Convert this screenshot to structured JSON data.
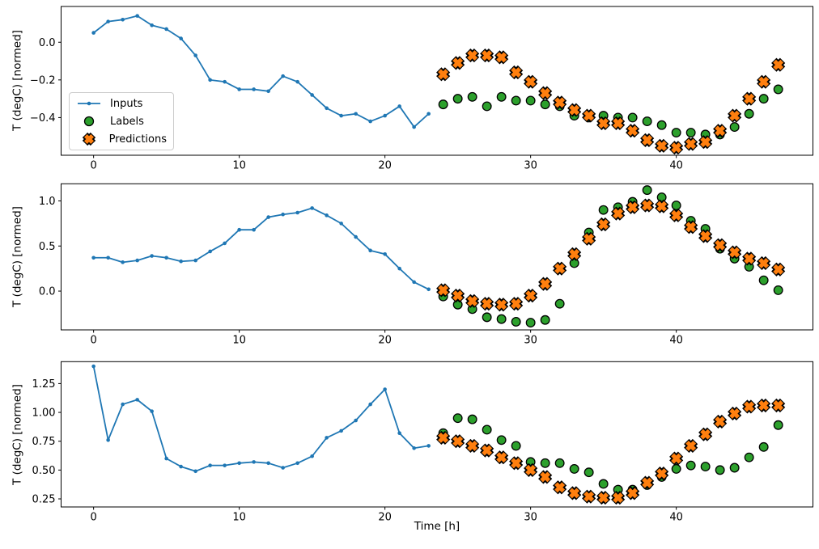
{
  "figure": {
    "xlabel": "Time [h]",
    "ylabel": "T (degC) [normed]",
    "background": "#ffffff",
    "colors": {
      "inputs": "#1f77b4",
      "labels": "#2ca02c",
      "predictions": "#ff7f0e",
      "marker_edge": "#000000",
      "axis": "#000000",
      "legend_border": "#cccccc"
    },
    "legend": {
      "position": "upper-left-of-first-subplot",
      "items": [
        {
          "label": "Inputs",
          "type": "line",
          "color": "#1f77b4"
        },
        {
          "label": "Labels",
          "type": "circle",
          "color": "#2ca02c"
        },
        {
          "label": "Predictions",
          "type": "x",
          "color": "#ff7f0e"
        }
      ]
    }
  },
  "chart_data": [
    {
      "type": "line",
      "subplot": 1,
      "ylabel": "T (degC) [normed]",
      "xlim": [
        -2.23,
        49.38
      ],
      "ylim": [
        -0.6,
        0.19
      ],
      "grid": false,
      "xticks": [
        0,
        10,
        20,
        30,
        40
      ],
      "yticks": [
        {
          "v": 0.0,
          "label": "0.0"
        },
        {
          "v": -0.2,
          "label": "−0.2"
        },
        {
          "v": -0.4,
          "label": "−0.4"
        }
      ],
      "series": [
        {
          "name": "Inputs",
          "type": "line",
          "color": "#1f77b4",
          "x_start": 0,
          "values": [
            0.05,
            0.11,
            0.12,
            0.14,
            0.09,
            0.07,
            0.02,
            -0.07,
            -0.2,
            -0.21,
            -0.25,
            -0.25,
            -0.26,
            -0.18,
            -0.21,
            -0.28,
            -0.35,
            -0.39,
            -0.38,
            -0.42,
            -0.39,
            -0.34,
            -0.45,
            -0.38
          ]
        },
        {
          "name": "Labels",
          "type": "scatter-circle",
          "color": "#2ca02c",
          "x_start": 24,
          "values": [
            -0.33,
            -0.3,
            -0.29,
            -0.34,
            -0.29,
            -0.31,
            -0.31,
            -0.33,
            -0.34,
            -0.39,
            -0.4,
            -0.39,
            -0.4,
            -0.4,
            -0.42,
            -0.44,
            -0.48,
            -0.48,
            -0.49,
            -0.49,
            -0.45,
            -0.38,
            -0.3,
            -0.25
          ]
        },
        {
          "name": "Predictions",
          "type": "scatter-x",
          "color": "#ff7f0e",
          "x_start": 24,
          "values": [
            -0.17,
            -0.11,
            -0.07,
            -0.07,
            -0.08,
            -0.16,
            -0.21,
            -0.27,
            -0.32,
            -0.36,
            -0.39,
            -0.43,
            -0.43,
            -0.47,
            -0.52,
            -0.55,
            -0.56,
            -0.54,
            -0.53,
            -0.47,
            -0.39,
            -0.3,
            -0.21,
            -0.12
          ]
        }
      ]
    },
    {
      "type": "line",
      "subplot": 2,
      "ylabel": "T (degC) [normed]",
      "xlim": [
        -2.23,
        49.38
      ],
      "ylim": [
        -0.43,
        1.19
      ],
      "grid": false,
      "xticks": [
        0,
        10,
        20,
        30,
        40
      ],
      "yticks": [
        {
          "v": 1.0,
          "label": "1.0"
        },
        {
          "v": 0.5,
          "label": "0.5"
        },
        {
          "v": 0.0,
          "label": "0.0"
        }
      ],
      "series": [
        {
          "name": "Inputs",
          "type": "line",
          "color": "#1f77b4",
          "x_start": 0,
          "values": [
            0.37,
            0.37,
            0.32,
            0.34,
            0.39,
            0.37,
            0.33,
            0.34,
            0.44,
            0.53,
            0.68,
            0.68,
            0.82,
            0.85,
            0.87,
            0.92,
            0.84,
            0.75,
            0.6,
            0.45,
            0.41,
            0.25,
            0.1,
            0.02
          ]
        },
        {
          "name": "Labels",
          "type": "scatter-circle",
          "color": "#2ca02c",
          "x_start": 24,
          "values": [
            -0.06,
            -0.15,
            -0.2,
            -0.29,
            -0.31,
            -0.34,
            -0.35,
            -0.32,
            -0.14,
            0.31,
            0.65,
            0.9,
            0.93,
            0.99,
            1.12,
            1.04,
            0.95,
            0.78,
            0.69,
            0.47,
            0.36,
            0.27,
            0.12,
            0.01
          ]
        },
        {
          "name": "Predictions",
          "type": "scatter-x",
          "color": "#ff7f0e",
          "x_start": 24,
          "values": [
            0.01,
            -0.05,
            -0.11,
            -0.14,
            -0.15,
            -0.14,
            -0.05,
            0.08,
            0.25,
            0.41,
            0.58,
            0.74,
            0.86,
            0.93,
            0.95,
            0.94,
            0.84,
            0.71,
            0.61,
            0.51,
            0.43,
            0.36,
            0.31,
            0.24
          ]
        }
      ]
    },
    {
      "type": "line",
      "subplot": 3,
      "ylabel": "T (degC) [normed]",
      "xlabel": "Time [h]",
      "xlim": [
        -2.23,
        49.38
      ],
      "ylim": [
        0.18,
        1.44
      ],
      "grid": false,
      "xticks": [
        0,
        10,
        20,
        30,
        40
      ],
      "yticks": [
        {
          "v": 1.25,
          "label": "1.25"
        },
        {
          "v": 1.0,
          "label": "1.00"
        },
        {
          "v": 0.75,
          "label": "0.75"
        },
        {
          "v": 0.5,
          "label": "0.50"
        },
        {
          "v": 0.25,
          "label": "0.25"
        }
      ],
      "series": [
        {
          "name": "Inputs",
          "type": "line",
          "color": "#1f77b4",
          "x_start": 0,
          "values": [
            1.4,
            0.76,
            1.07,
            1.11,
            1.01,
            0.6,
            0.53,
            0.49,
            0.54,
            0.54,
            0.56,
            0.57,
            0.56,
            0.52,
            0.56,
            0.62,
            0.78,
            0.84,
            0.93,
            1.07,
            1.2,
            0.82,
            0.69,
            0.71
          ]
        },
        {
          "name": "Labels",
          "type": "scatter-circle",
          "color": "#2ca02c",
          "x_start": 24,
          "values": [
            0.82,
            0.95,
            0.94,
            0.85,
            0.76,
            0.71,
            0.57,
            0.56,
            0.56,
            0.51,
            0.48,
            0.38,
            0.33,
            0.33,
            0.37,
            0.44,
            0.51,
            0.54,
            0.53,
            0.5,
            0.52,
            0.61,
            0.7,
            0.89
          ]
        },
        {
          "name": "Predictions",
          "type": "scatter-x",
          "color": "#ff7f0e",
          "x_start": 24,
          "values": [
            0.78,
            0.75,
            0.71,
            0.67,
            0.61,
            0.56,
            0.5,
            0.44,
            0.35,
            0.3,
            0.27,
            0.26,
            0.26,
            0.3,
            0.39,
            0.47,
            0.6,
            0.71,
            0.81,
            0.92,
            0.99,
            1.05,
            1.06,
            1.06
          ]
        }
      ]
    }
  ]
}
